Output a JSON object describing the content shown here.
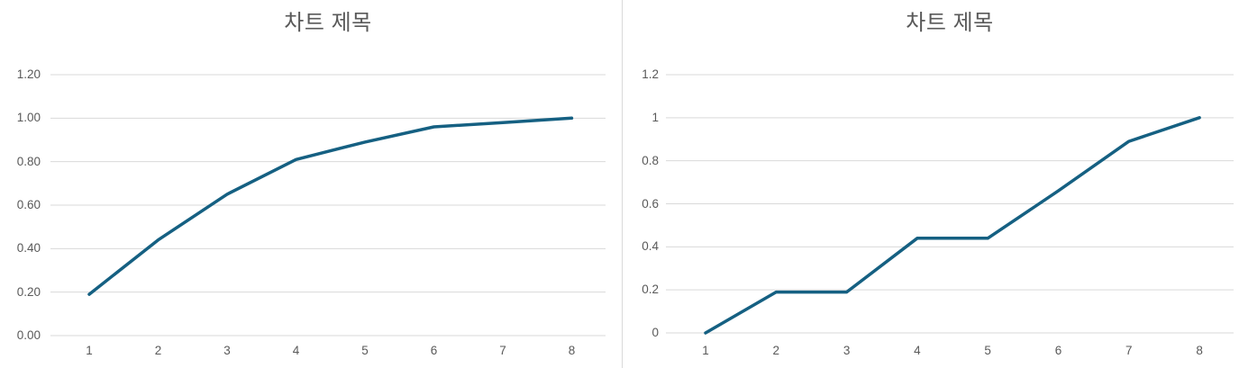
{
  "page": {
    "background": "#ffffff",
    "divider_color": "#d9d9d9"
  },
  "chart_data": [
    {
      "type": "line",
      "title": "차트 제목",
      "categories": [
        "1",
        "2",
        "3",
        "4",
        "5",
        "6",
        "7",
        "8"
      ],
      "values": [
        0.19,
        0.44,
        0.65,
        0.81,
        0.89,
        0.96,
        0.98,
        1.0
      ],
      "xlabel": "",
      "ylabel": "",
      "ylim": [
        0,
        1.2
      ],
      "ytick_step": 0.2,
      "ytick_labels": [
        "0.00",
        "0.20",
        "0.40",
        "0.60",
        "0.80",
        "1.00",
        "1.20"
      ],
      "grid": true,
      "legend": "none",
      "line_color": "#156082",
      "gridline_color": "#d9d9d9",
      "label_color": "#595959",
      "title_color": "#595959"
    },
    {
      "type": "line",
      "title": "차트 제목",
      "categories": [
        "1",
        "2",
        "3",
        "4",
        "5",
        "6",
        "7",
        "8"
      ],
      "values": [
        0.0,
        0.19,
        0.19,
        0.44,
        0.44,
        0.66,
        0.89,
        1.0
      ],
      "xlabel": "",
      "ylabel": "",
      "ylim": [
        0,
        1.2
      ],
      "ytick_step": 0.2,
      "ytick_labels": [
        "0",
        "0.2",
        "0.4",
        "0.6",
        "0.8",
        "1",
        "1.2"
      ],
      "grid": true,
      "legend": "none",
      "line_color": "#156082",
      "gridline_color": "#d9d9d9",
      "label_color": "#595959",
      "title_color": "#595959"
    }
  ]
}
